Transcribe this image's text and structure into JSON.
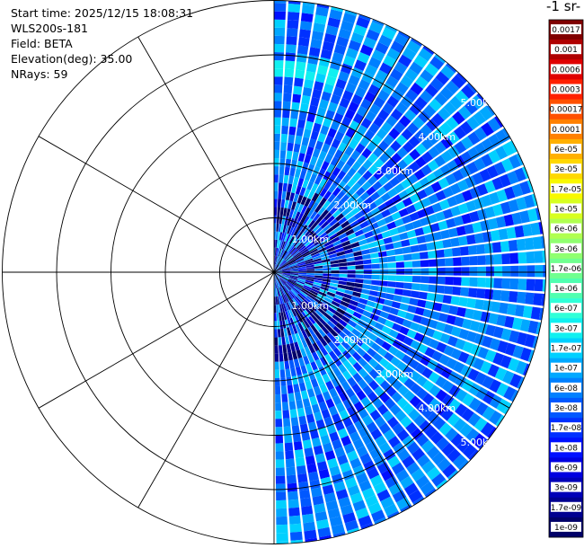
{
  "meta": {
    "start_time": "Start time: 2025/12/15 18:08:31",
    "instrument": "WLS200s-181",
    "field": "Field: BETA",
    "elevation": "Elevation(deg): 35.00",
    "nrays": "NRays: 59"
  },
  "colorbar": {
    "units_label": "-1 sr-",
    "labels": [
      "0.0017",
      "0.001",
      "0.0006",
      "0.0003",
      "0.00017",
      "0.0001",
      "6e-05",
      "3e-05",
      "1.7e-05",
      "1e-05",
      "6e-06",
      "3e-06",
      "1.7e-06",
      "1e-06",
      "6e-07",
      "3e-07",
      "1.7e-07",
      "1e-07",
      "6e-08",
      "3e-08",
      "1.7e-08",
      "1e-08",
      "6e-09",
      "3e-09",
      "1.7e-09",
      "1e-09"
    ],
    "colors": [
      "#800000",
      "#b00000",
      "#e00000",
      "#ff2000",
      "#ff5000",
      "#ff8000",
      "#ffb000",
      "#ffd800",
      "#f8f800",
      "#d8ff20",
      "#b0ff50",
      "#90ff70",
      "#70ff90",
      "#50ffb0",
      "#30ffd8",
      "#10f0f0",
      "#00d0ff",
      "#00a8ff",
      "#0080ff",
      "#0058ff",
      "#0030ff",
      "#0010ff",
      "#0000e0",
      "#0000b8",
      "#000090",
      "#000068"
    ]
  },
  "chart_data": {
    "type": "polar-ppi",
    "field": "BETA",
    "elevation_deg": 35.0,
    "nrays": 59,
    "azimuth_range_deg": [
      0,
      180
    ],
    "range_ring_labels": [
      "1.00km",
      "2.00km",
      "3.00km",
      "4.00km",
      "5.00km"
    ],
    "range_rings_km": [
      1,
      2,
      3,
      4,
      5
    ],
    "max_range_km": 5.0,
    "spoke_angles_deg": [
      0,
      30,
      60,
      90,
      120,
      150,
      180,
      210,
      240,
      270,
      300,
      330
    ],
    "typical_value_range": [
      1e-08,
      1e-06
    ],
    "enhanced_arc": {
      "range_km": [
        3.55,
        3.9
      ],
      "azimuth_deg": [
        0,
        18
      ],
      "approx_value": 2e-07
    }
  }
}
